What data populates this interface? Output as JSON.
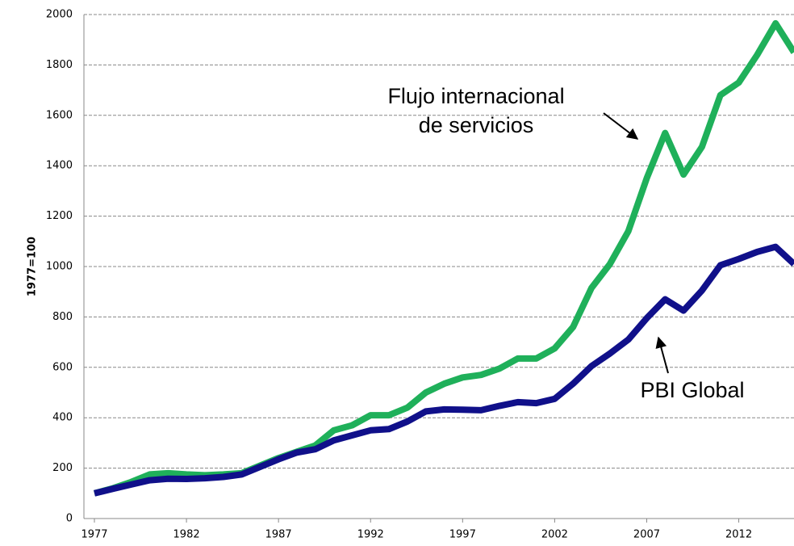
{
  "chart_data": {
    "type": "line",
    "ylabel": "1977=100",
    "x": [
      1977,
      1978,
      1979,
      1980,
      1981,
      1982,
      1983,
      1984,
      1985,
      1986,
      1987,
      1988,
      1989,
      1990,
      1991,
      1992,
      1993,
      1994,
      1995,
      1996,
      1997,
      1998,
      1999,
      2000,
      2001,
      2002,
      2003,
      2004,
      2005,
      2006,
      2007,
      2008,
      2009,
      2010,
      2011,
      2012,
      2013,
      2014,
      2015
    ],
    "series": [
      {
        "name": "Flujo internacional de servicios",
        "color": "#1fb05a",
        "values": [
          100,
          120,
          145,
          175,
          180,
          175,
          172,
          175,
          180,
          210,
          240,
          265,
          290,
          350,
          370,
          410,
          410,
          440,
          500,
          535,
          560,
          570,
          595,
          635,
          635,
          675,
          760,
          915,
          1010,
          1140,
          1350,
          1530,
          1365,
          1475,
          1680,
          1730,
          1840,
          1965,
          1850
        ]
      },
      {
        "name": "PBI Global",
        "color": "#10108a",
        "values": [
          100,
          118,
          135,
          152,
          158,
          157,
          160,
          165,
          175,
          205,
          235,
          262,
          275,
          310,
          330,
          350,
          355,
          385,
          425,
          433,
          432,
          430,
          447,
          462,
          458,
          475,
          535,
          605,
          655,
          710,
          795,
          870,
          825,
          905,
          1005,
          1030,
          1058,
          1078,
          1010
        ]
      }
    ],
    "annotations": [
      {
        "lines": [
          "Flujo internacional",
          "de servicios"
        ]
      },
      {
        "lines": [
          "PBI Global"
        ]
      }
    ],
    "xlim": [
      1977,
      2015
    ],
    "xticks": [
      1977,
      1982,
      1987,
      1992,
      1997,
      2002,
      2007,
      2012
    ],
    "ylim": [
      0,
      2000
    ],
    "yticks": [
      0,
      200,
      400,
      600,
      800,
      1000,
      1200,
      1400,
      1600,
      1800,
      2000
    ],
    "grid": true
  }
}
